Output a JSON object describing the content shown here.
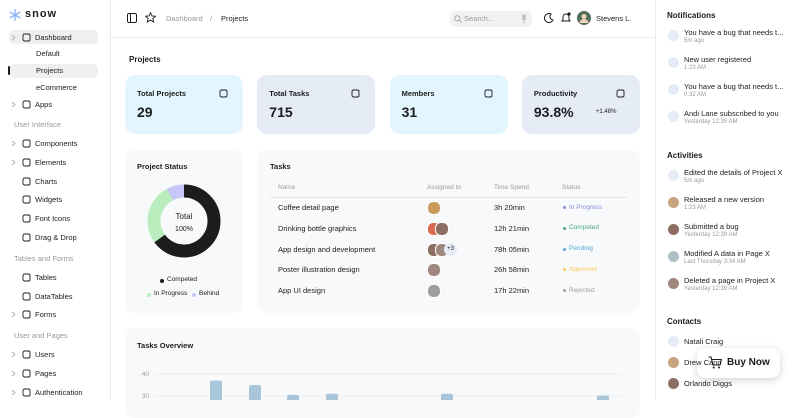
{
  "sidebar": {
    "logo": "snow",
    "dashboard": "Dashboard",
    "dashboard_sub": [
      "Default",
      "Projects",
      "eCommerce"
    ],
    "apps": "Apps",
    "sections": [
      {
        "title": "User Interface",
        "items": [
          "Components",
          "Elements",
          "Charts",
          "Widgets",
          "Font Icons",
          "Drag & Drop"
        ]
      },
      {
        "title": "Tables and Forms",
        "items": [
          "Tables",
          "DataTables",
          "Forms"
        ]
      },
      {
        "title": "User and Pages",
        "items": [
          "Users",
          "Pages",
          "Authentication"
        ]
      }
    ]
  },
  "topbar": {
    "breadcrumb": [
      "Dashboard",
      "/",
      "Projects"
    ],
    "search": "Search...",
    "user": "Stevens L."
  },
  "page_title": "Projects",
  "stats": [
    {
      "label": "Total Projects",
      "value": 29
    },
    {
      "label": "Total Tasks",
      "value": 715
    },
    {
      "label": "Members",
      "value": 31
    },
    {
      "label": "Productivity",
      "value": "93.8%",
      "change": "+1.48%"
    }
  ],
  "project_status": {
    "title": "Project Status",
    "center_label": "Total",
    "center_value": "100%",
    "segments": [
      {
        "name": "Competed",
        "value": 65,
        "color": "#1c1c1c"
      },
      {
        "name": "In Progress",
        "value": 27,
        "color": "#baedbd"
      },
      {
        "name": "Behind",
        "value": 8,
        "color": "#c6c7f8"
      }
    ]
  },
  "tasks": {
    "title": "Tasks",
    "columns": [
      "Name",
      "Assigned to",
      "Time Spend",
      "Status"
    ],
    "rows": [
      {
        "name": "Coffee detail page",
        "time": "3h 20min",
        "status": "In Progress",
        "color": "#8a8cd9"
      },
      {
        "name": "Drinking bottle graphics",
        "time": "12h 21min",
        "status": "Competed",
        "color": "#4aa785"
      },
      {
        "name": "App design and development",
        "more": "+3",
        "time": "78h 05min",
        "status": "Pending",
        "color": "#59a8d4"
      },
      {
        "name": "Poster illustration design",
        "time": "26h 58min",
        "status": "Approved",
        "color": "#ffc555"
      },
      {
        "name": "App UI design",
        "time": "17h 22min",
        "status": "Rejected",
        "color": "#a0a0a0"
      }
    ]
  },
  "overview": {
    "title": "Tasks Overview",
    "yticks": [
      40,
      30
    ],
    "values": [
      37,
      35,
      30.5,
      31,
      31,
      30.2
    ],
    "color": "#a8c5da"
  },
  "notifications": {
    "title": "Notifications",
    "items": [
      {
        "text": "You have a bug that needs t...",
        "time": "5m ago"
      },
      {
        "text": "New user registered",
        "time": "1:23 AM"
      },
      {
        "text": "You have a bug that needs t...",
        "time": "0:32 AM"
      },
      {
        "text": "Andi Lane subscribed to you",
        "time": "Yesterday 12:39 AM"
      }
    ]
  },
  "activities": {
    "title": "Activities",
    "items": [
      {
        "text": "Edited the details of Project X",
        "time": "5m ago"
      },
      {
        "text": "Released a new version",
        "time": "1:23 AM"
      },
      {
        "text": "Submitted a bug",
        "time": "Yesterday 12:39 AM"
      },
      {
        "text": "Modified A data in Page X",
        "time": "Last Thursday 3:34 AM"
      },
      {
        "text": "Deleted a page in Project X",
        "time": "Yesterday 12:39 AM"
      }
    ]
  },
  "contacts": {
    "title": "Contacts",
    "items": [
      "Natali Craig",
      "Drew Cano",
      "Orlando Diggs"
    ]
  },
  "buy_now": "Buy Now"
}
